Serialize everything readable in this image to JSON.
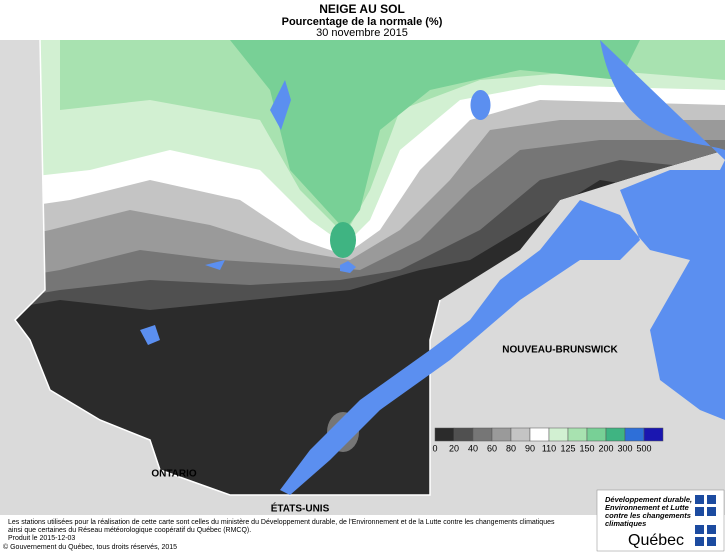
{
  "header": {
    "title": "NEIGE AU SOL",
    "subtitle": "Pourcentage de la normale (%)",
    "date": "30 novembre 2015"
  },
  "map_labels": {
    "new_brunswick": "NOUVEAU-BRUNSWICK",
    "ontario": "ONTARIO",
    "usa": "ÉTATS-UNIS"
  },
  "legend": {
    "labels": [
      "0",
      "20",
      "40",
      "60",
      "80",
      "90",
      "110",
      "125",
      "150",
      "200",
      "300",
      "500"
    ],
    "colors": [
      "#2b2b2b",
      "#505050",
      "#767676",
      "#9a9a9a",
      "#c4c4c4",
      "#ffffff",
      "#d2f0d2",
      "#a8e2b0",
      "#78d096",
      "#3fb482",
      "#2e6fd8",
      "#1a16b0"
    ]
  },
  "footer": {
    "notes": [
      "Les stations utilisées pour la réalisation de cette carte sont celles du ministère du Développement durable, de l'Environnement et de la Lutte contre les changements climatiques",
      "ainsi que certaines du Réseau météorologique coopératif du Québec (RMCQ)."
    ],
    "produced": "Produit le 2015-12-03",
    "copyright": "© Gouvernement du Québec, tous droits réservés, 2015"
  },
  "logo": {
    "ministry": [
      "Développement durable,",
      "Environnement et Lutte",
      "contre les changements",
      "climatiques"
    ],
    "name": "Québec"
  }
}
